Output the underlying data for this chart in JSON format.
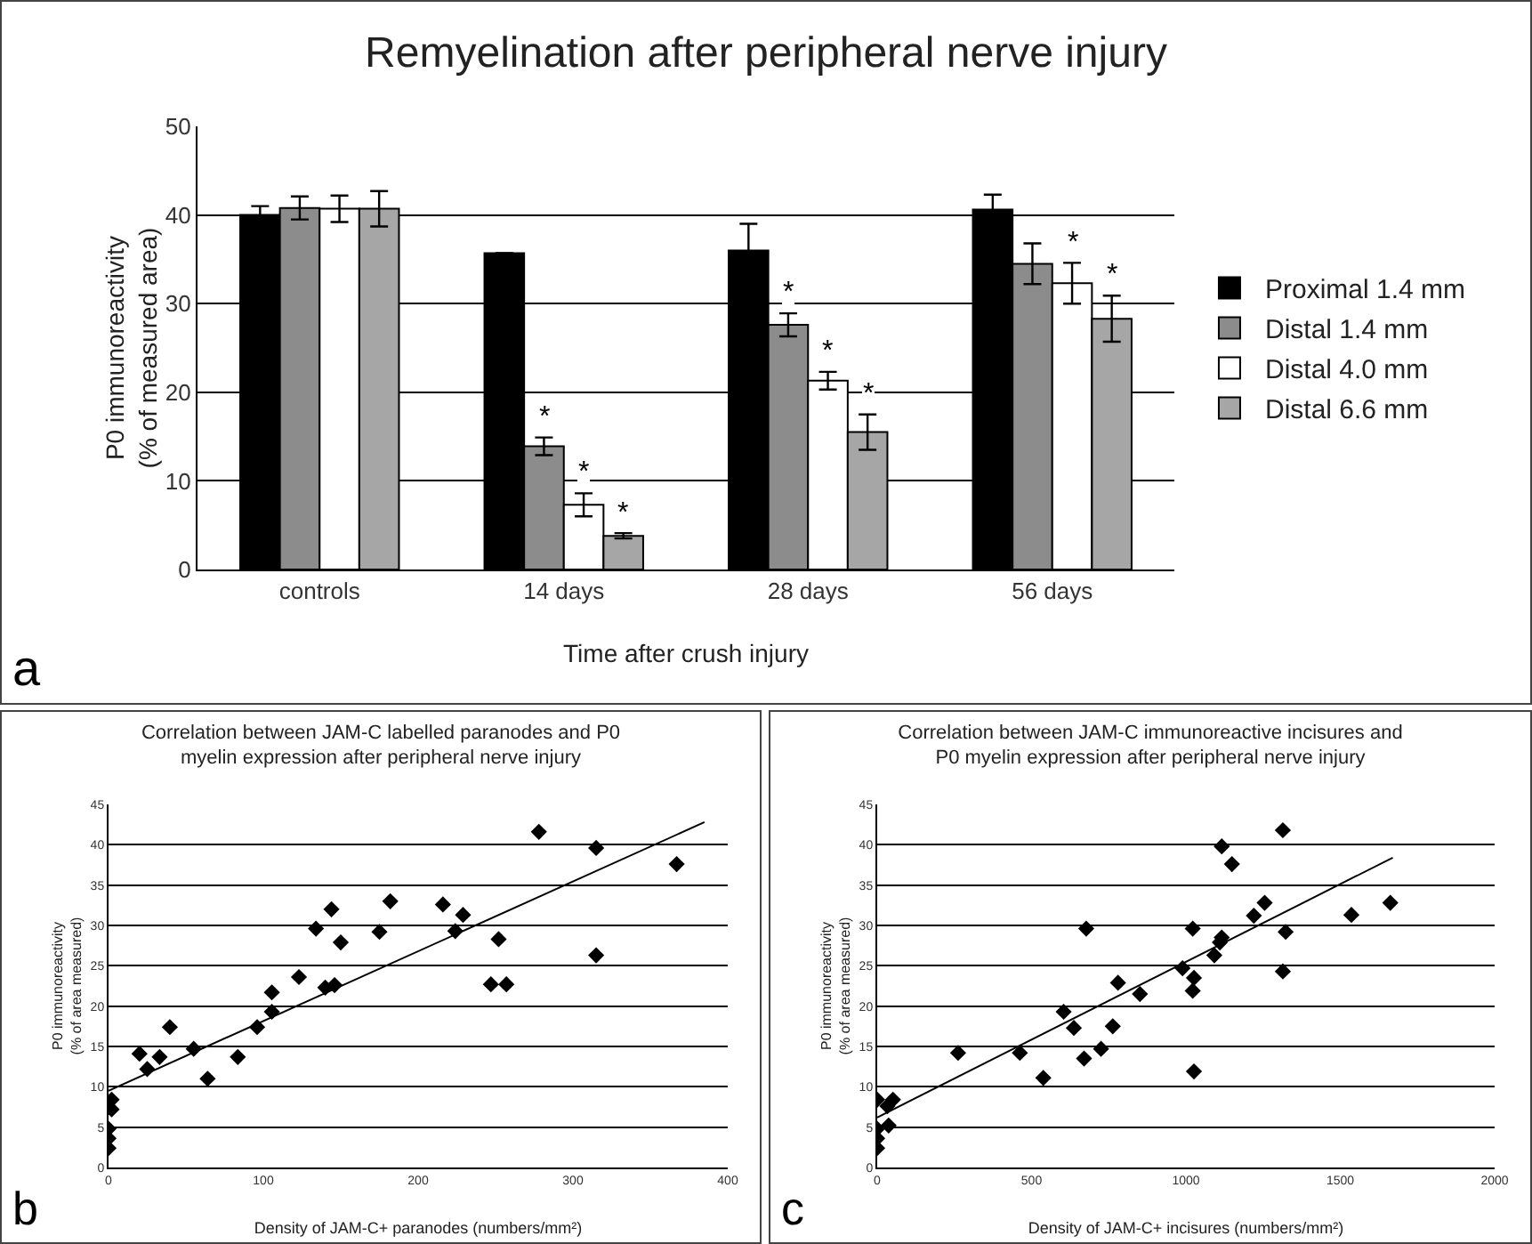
{
  "chart_data": [
    {
      "type": "bar",
      "title": "Remyelination after peripheral nerve injury",
      "xlabel": "Time after crush injury",
      "ylabel": "P0 immunoreactivity (% of measured area)",
      "categories": [
        "controls",
        "14 days",
        "28 days",
        "56 days"
      ],
      "series": [
        {
          "name": "Proximal 1.4 mm",
          "color": "#000000",
          "values": [
            40,
            35.7,
            36,
            40.6
          ],
          "errors": [
            1,
            null,
            3,
            1.7
          ],
          "value_labels": [
            null,
            null,
            null,
            null
          ]
        },
        {
          "name": "Distal 1.4 mm",
          "color": "#8c8c8c",
          "values": [
            40.8,
            13.9,
            27.6,
            34.5
          ],
          "errors": [
            1.3,
            1,
            1.3,
            2.3
          ],
          "value_labels": [
            null,
            "*",
            "*",
            null
          ]
        },
        {
          "name": "Distal 4.0 mm",
          "color": "#ffffff",
          "values": [
            40.7,
            7.3,
            21.3,
            32.3
          ],
          "errors": [
            1.5,
            1.3,
            1,
            2.3
          ],
          "value_labels": [
            null,
            "*",
            "*",
            "*"
          ]
        },
        {
          "name": "Distal 6.6 mm",
          "color": "#a6a6a6",
          "values": [
            40.7,
            3.8,
            15.5,
            28.3
          ],
          "errors": [
            2,
            0.3,
            2,
            2.6
          ],
          "value_labels": [
            null,
            "*",
            "*",
            "*"
          ]
        }
      ],
      "ylim": [
        0,
        50
      ],
      "yticks": [
        0,
        10,
        20,
        30,
        40,
        50
      ],
      "grid": "y",
      "legend": "right",
      "annotations": [
        "a"
      ]
    },
    {
      "type": "scatter",
      "title": "Correlation between JAM-C labelled paranodes and P0 myelin expression after peripheral nerve injury",
      "xlabel": "Density of JAM-C+ paranodes (numbers/mm²)",
      "ylabel": "P0 immunoreactivity (% of area measured)",
      "series": [
        {
          "color": "#000000",
          "marker": "diamond",
          "x": [
            278,
            315,
            367,
            315,
            252,
            247,
            257,
            229,
            224,
            216,
            182,
            175,
            144,
            134,
            150,
            140,
            146,
            123,
            105.5,
            105.5,
            96,
            83.5,
            64,
            55,
            39.6,
            33,
            25,
            20,
            2,
            2,
            0,
            0,
            0
          ],
          "values": [
            41.6,
            39.6,
            37.6,
            26.3,
            28.3,
            22.7,
            22.7,
            31.3,
            29.3,
            32.6,
            33,
            29.2,
            32,
            29.6,
            27.9,
            22.3,
            22.6,
            23.6,
            21.7,
            19.3,
            17.4,
            13.7,
            11,
            14.7,
            17.4,
            13.7,
            12.2,
            14.1,
            8.4,
            7.2,
            4.8,
            3.6,
            2.4
          ]
        },
        {
          "type": "line",
          "color": "#000000",
          "marker": "none",
          "x": [
            0,
            385
          ],
          "values": [
            9.5,
            42.8
          ]
        }
      ],
      "xlim": [
        0,
        400
      ],
      "xticks": [
        0,
        100,
        200,
        300,
        400
      ],
      "ylim": [
        0,
        45
      ],
      "yticks": [
        0,
        5,
        10,
        15,
        20,
        25,
        30,
        35,
        40,
        45
      ],
      "grid": "y",
      "annotations": [
        "b"
      ]
    },
    {
      "type": "scatter",
      "title": "Correlation between JAM-C immunoreactive incisures and P0 myelin expression after peripheral nerve injury",
      "xlabel": "Density of JAM-C+ incisures (numbers/mm²)",
      "ylabel": "P0 immunoreactivity (% of area measured)",
      "series": [
        {
          "color": "#000000",
          "marker": "diamond",
          "x": [
            1314,
            1116,
            1149,
            1255,
            1220,
            1323,
            1314,
            1536,
            1662,
            1116,
            1110,
            1092,
            1022,
            989,
            1026,
            1022,
            1026,
            677,
            780,
            851,
            604,
            637,
            763,
            725,
            670,
            538,
            462,
            262,
            0,
            33,
            51,
            37,
            0,
            0,
            0
          ],
          "values": [
            41.8,
            39.8,
            37.6,
            32.8,
            31.2,
            29.2,
            24.3,
            31.3,
            32.8,
            28.5,
            27.9,
            26.3,
            29.6,
            24.7,
            23.5,
            21.9,
            11.9,
            29.6,
            22.9,
            21.5,
            19.3,
            17.3,
            17.5,
            14.7,
            13.5,
            11.1,
            14.2,
            14.2,
            8.4,
            7.6,
            8.4,
            5.2,
            4.8,
            3.6,
            2.4
          ]
        },
        {
          "type": "line",
          "color": "#000000",
          "marker": "none",
          "x": [
            0,
            1670
          ],
          "values": [
            6.2,
            38.4
          ]
        }
      ],
      "xlim": [
        0,
        2000
      ],
      "xticks": [
        0,
        500,
        1000,
        1500,
        2000
      ],
      "ylim": [
        0,
        45
      ],
      "yticks": [
        0,
        5,
        10,
        15,
        20,
        25,
        30,
        35,
        40,
        45
      ],
      "grid": "y",
      "annotations": [
        "c"
      ]
    }
  ]
}
